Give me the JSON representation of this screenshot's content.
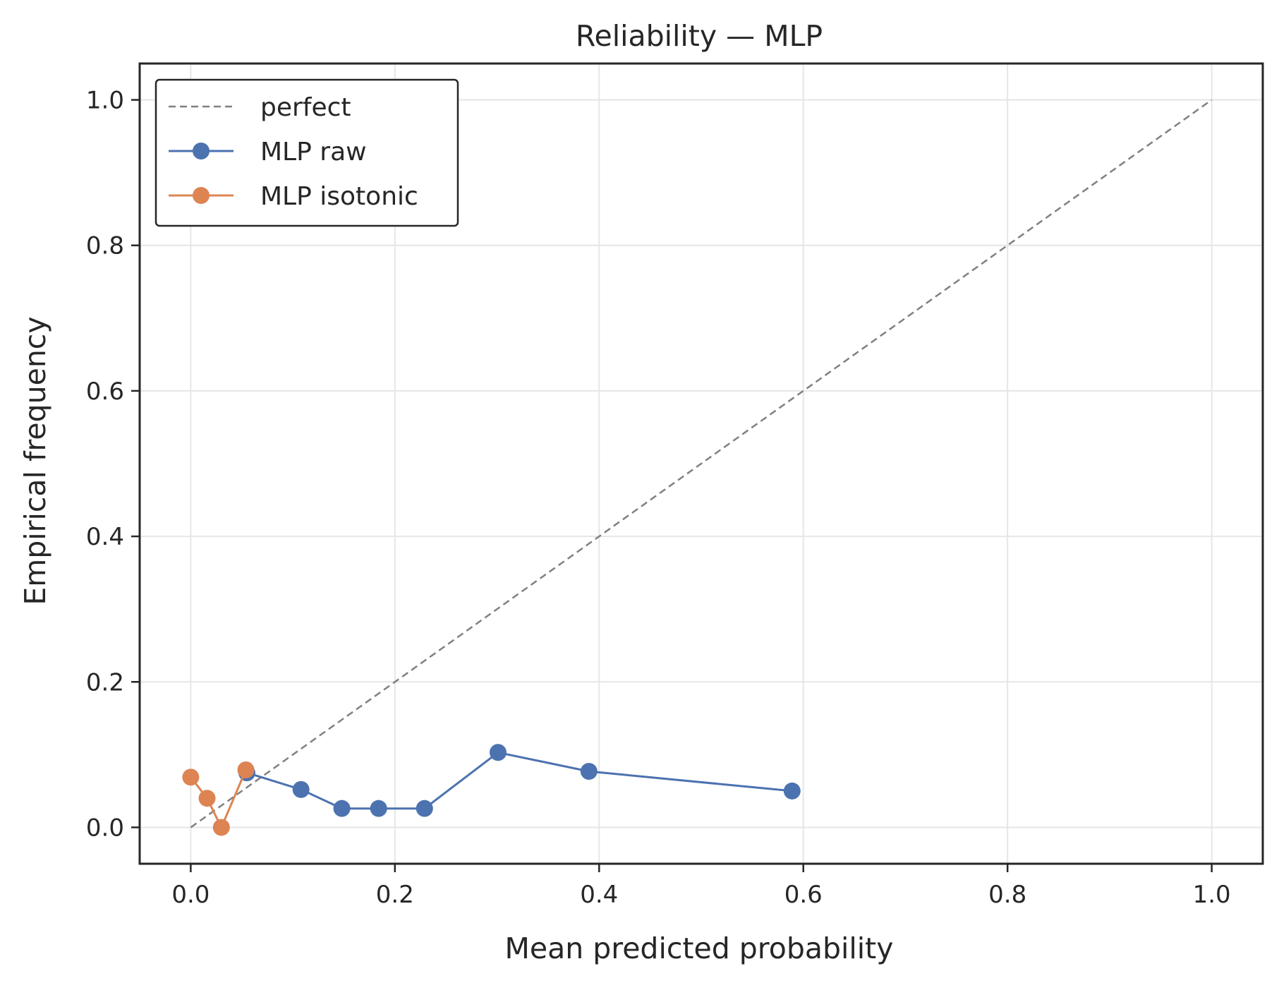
{
  "chart_data": {
    "type": "line",
    "title": "Reliability — MLP",
    "xlabel": "Mean predicted probability",
    "ylabel": "Empirical frequency",
    "xlim": [
      -0.05,
      1.05
    ],
    "ylim": [
      -0.05,
      1.05
    ],
    "xticks": [
      0.0,
      0.2,
      0.4,
      0.6,
      0.8,
      1.0
    ],
    "yticks": [
      0.0,
      0.2,
      0.4,
      0.6,
      0.8,
      1.0
    ],
    "xtick_labels": [
      "0.0",
      "0.2",
      "0.4",
      "0.6",
      "0.8",
      "1.0"
    ],
    "ytick_labels": [
      "0.0",
      "0.2",
      "0.4",
      "0.6",
      "0.8",
      "1.0"
    ],
    "grid": true,
    "legend_position": "top-left",
    "series": [
      {
        "name": "perfect",
        "style": "dashed",
        "markers": false,
        "color": "#808080",
        "x": [
          0.0,
          1.0
        ],
        "y": [
          0.0,
          1.0
        ]
      },
      {
        "name": "MLP raw",
        "style": "solid",
        "markers": true,
        "color": "#4c72b0",
        "x": [
          0.055,
          0.108,
          0.148,
          0.184,
          0.229,
          0.301,
          0.39,
          0.589
        ],
        "y": [
          0.075,
          0.052,
          0.026,
          0.026,
          0.026,
          0.103,
          0.077,
          0.05
        ]
      },
      {
        "name": "MLP isotonic",
        "style": "solid",
        "markers": true,
        "color": "#dd8452",
        "x": [
          0.0,
          0.016,
          0.03,
          0.054
        ],
        "y": [
          0.069,
          0.04,
          0.0,
          0.079
        ]
      }
    ]
  }
}
